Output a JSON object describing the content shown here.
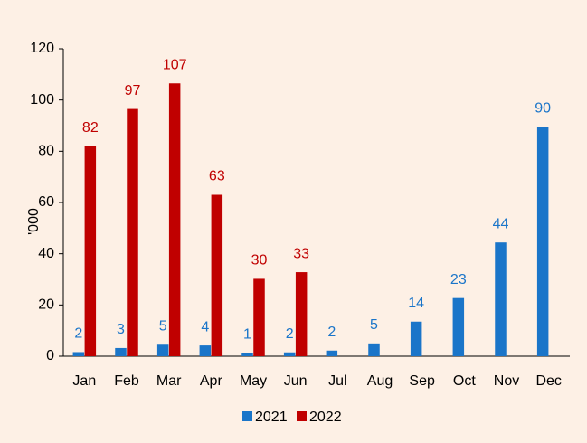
{
  "chart_data": {
    "type": "bar",
    "categories": [
      "Jan",
      "Feb",
      "Mar",
      "Apr",
      "May",
      "Jun",
      "Jul",
      "Aug",
      "Sep",
      "Oct",
      "Nov",
      "Dec"
    ],
    "series": [
      {
        "name": "2021",
        "color": "#1a75c9",
        "values": [
          1.6,
          3.2,
          4.5,
          4.2,
          1.3,
          1.5,
          2.2,
          5,
          13.5,
          22.7,
          44.4,
          89.5
        ],
        "value_labels": [
          "2",
          "3",
          "5",
          "4",
          "1",
          "2",
          "2",
          "5",
          "14",
          "23",
          "44",
          "90"
        ]
      },
      {
        "name": "2022",
        "color": "#c00000",
        "values": [
          82,
          96.5,
          106.5,
          63,
          30.2,
          32.8,
          null,
          null,
          null,
          null,
          null,
          null
        ],
        "value_labels": [
          "82",
          "97",
          "107",
          "63",
          "30",
          "33",
          null,
          null,
          null,
          null,
          null,
          null
        ]
      }
    ],
    "ylabel": "'000",
    "ylim": [
      0,
      120
    ],
    "yticks": [
      0,
      20,
      40,
      60,
      80,
      100,
      120
    ],
    "grid": false,
    "legend": "bottom"
  }
}
